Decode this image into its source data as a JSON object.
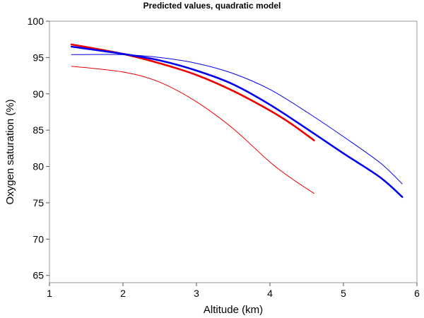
{
  "chart_data": {
    "type": "line",
    "title": "Predicted values, quadratic model",
    "xlabel": "Altitude (km)",
    "ylabel": "Oxygen saturation (%)",
    "xlim": [
      1,
      6
    ],
    "ylim": [
      64,
      100
    ],
    "xticks": [
      "1",
      "2",
      "3",
      "4",
      "5",
      "6"
    ],
    "yticks": [
      "65",
      "70",
      "75",
      "80",
      "85",
      "90",
      "95",
      "100"
    ],
    "grid": false,
    "series": [
      {
        "color": "#ee0000",
        "line": "thick",
        "points": [
          [
            1.3,
            96.8
          ],
          [
            2.0,
            95.5
          ],
          [
            2.5,
            94.2
          ],
          [
            3.0,
            92.6
          ],
          [
            3.5,
            90.4
          ],
          [
            4.0,
            87.7
          ],
          [
            4.3,
            85.8
          ],
          [
            4.6,
            83.6
          ]
        ]
      },
      {
        "color": "#ee0000",
        "line": "thin",
        "points": [
          [
            1.3,
            93.8
          ],
          [
            2.0,
            93.0
          ],
          [
            2.5,
            91.6
          ],
          [
            3.0,
            88.9
          ],
          [
            3.5,
            85.2
          ],
          [
            4.0,
            80.6
          ],
          [
            4.3,
            78.3
          ],
          [
            4.6,
            76.3
          ]
        ]
      },
      {
        "color": "#0000ee",
        "line": "thick",
        "points": [
          [
            1.3,
            96.5
          ],
          [
            2.0,
            95.5
          ],
          [
            2.5,
            94.6
          ],
          [
            3.0,
            93.2
          ],
          [
            3.5,
            91.3
          ],
          [
            4.0,
            88.5
          ],
          [
            4.5,
            85.2
          ],
          [
            5.0,
            81.8
          ],
          [
            5.5,
            78.5
          ],
          [
            5.8,
            75.8
          ]
        ]
      },
      {
        "color": "#0000ee",
        "line": "thin",
        "points": [
          [
            1.3,
            95.4
          ],
          [
            2.0,
            95.4
          ],
          [
            2.5,
            95.0
          ],
          [
            3.0,
            94.2
          ],
          [
            3.5,
            92.8
          ],
          [
            4.0,
            90.6
          ],
          [
            4.5,
            87.5
          ],
          [
            5.0,
            84.1
          ],
          [
            5.5,
            80.5
          ],
          [
            5.8,
            77.6
          ]
        ]
      }
    ]
  }
}
